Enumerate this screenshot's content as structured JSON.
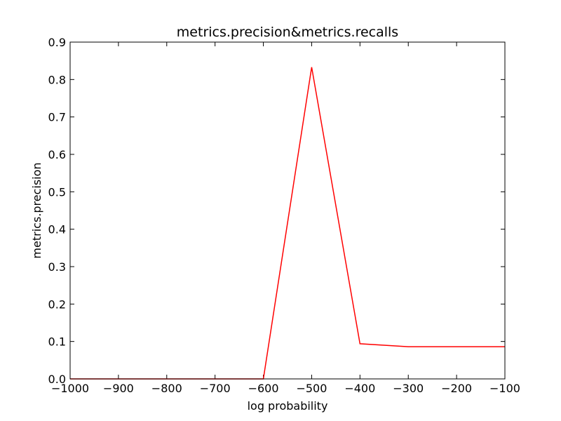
{
  "chart_data": {
    "type": "line",
    "title": "metrics.precision&metrics.recalls",
    "xlabel": "log probability",
    "ylabel": "metrics.precision",
    "xlim": [
      -1000,
      -100
    ],
    "ylim": [
      0.0,
      0.9
    ],
    "x_ticks": [
      "−1000",
      "−900",
      "−800",
      "−700",
      "−600",
      "−500",
      "−400",
      "−300",
      "−200",
      "−100"
    ],
    "y_ticks": [
      "0.0",
      "0.1",
      "0.2",
      "0.3",
      "0.4",
      "0.5",
      "0.6",
      "0.7",
      "0.8",
      "0.9"
    ],
    "grid": false,
    "series": [
      {
        "color": "#ff0000",
        "x": [
          -1000,
          -900,
          -800,
          -700,
          -600,
          -500,
          -400,
          -300,
          -200,
          -100
        ],
        "y": [
          0.0,
          0.0,
          0.0,
          0.0,
          0.0,
          0.833,
          0.094,
          0.086,
          0.086,
          0.086
        ]
      }
    ]
  }
}
